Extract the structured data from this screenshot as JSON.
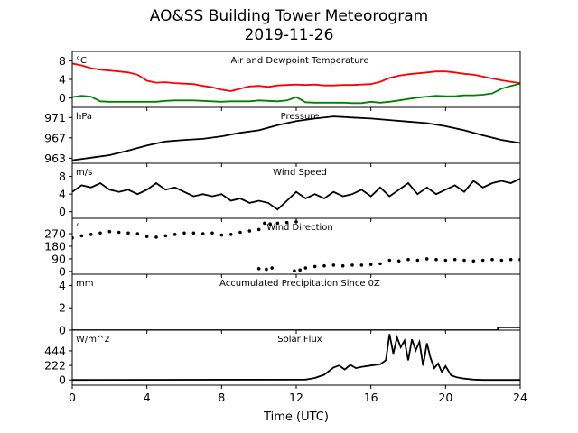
{
  "figure": {
    "title_line1": "AO&SS Building Tower Meteorogram",
    "title_line2": "2019-11-26",
    "xlabel": "Time (UTC)"
  },
  "chart_data": [
    {
      "type": "line",
      "panel": "temperature",
      "unit_label": "°C",
      "title": "Air and Dewpoint Temperature",
      "xlim": [
        0,
        24
      ],
      "ylim": [
        -2,
        10
      ],
      "yticks": [
        "0",
        "4",
        "8"
      ],
      "ytick_values": [
        0,
        4,
        8
      ],
      "series": [
        {
          "color": "#ff0000",
          "x": [
            0,
            0.5,
            1,
            1.5,
            2,
            2.5,
            3,
            3.5,
            4,
            4.5,
            5,
            5.5,
            6,
            6.5,
            7,
            7.5,
            8,
            8.5,
            9,
            9.5,
            10,
            10.5,
            11,
            11.5,
            12,
            12.5,
            13,
            13.5,
            14,
            14.5,
            15,
            15.5,
            16,
            16.5,
            17,
            17.5,
            18,
            18.5,
            19,
            19.5,
            20,
            20.5,
            21,
            21.5,
            22,
            22.5,
            23,
            23.5,
            24
          ],
          "values": [
            7.4,
            7.0,
            6.4,
            6.1,
            5.9,
            5.7,
            5.5,
            5.0,
            3.7,
            3.3,
            3.4,
            3.2,
            3.1,
            3.0,
            2.6,
            2.3,
            1.8,
            1.5,
            2.0,
            2.5,
            2.6,
            2.4,
            2.7,
            2.8,
            2.9,
            2.8,
            2.9,
            2.7,
            2.7,
            2.8,
            2.8,
            2.9,
            3.0,
            3.5,
            4.3,
            4.8,
            5.1,
            5.3,
            5.5,
            5.7,
            5.7,
            5.5,
            5.2,
            5.0,
            4.6,
            4.2,
            3.8,
            3.5,
            3.2
          ]
        },
        {
          "color": "#008000",
          "x": [
            0,
            0.5,
            1,
            1.5,
            2,
            2.5,
            3,
            3.5,
            4,
            4.5,
            5,
            5.5,
            6,
            6.5,
            7,
            7.5,
            8,
            8.5,
            9,
            9.5,
            10,
            10.5,
            11,
            11.5,
            12,
            12.5,
            13,
            13.5,
            14,
            14.5,
            15,
            15.5,
            16,
            16.5,
            17,
            17.5,
            18,
            18.5,
            19,
            19.5,
            20,
            20.5,
            21,
            21.5,
            22,
            22.5,
            23,
            23.5,
            24
          ],
          "values": [
            0.2,
            0.5,
            0.3,
            -0.7,
            -0.8,
            -0.8,
            -0.8,
            -0.8,
            -0.8,
            -0.8,
            -0.6,
            -0.5,
            -0.5,
            -0.5,
            -0.6,
            -0.7,
            -0.8,
            -0.7,
            -0.7,
            -0.7,
            -0.5,
            -0.6,
            -0.7,
            -0.5,
            0.2,
            -0.9,
            -1.0,
            -1.0,
            -1.0,
            -1.0,
            -1.1,
            -1.1,
            -0.8,
            -1.0,
            -0.8,
            -0.5,
            -0.2,
            0.1,
            0.3,
            0.5,
            0.4,
            0.4,
            0.6,
            0.6,
            0.7,
            1.0,
            2.0,
            2.6,
            3.1
          ]
        }
      ]
    },
    {
      "type": "line",
      "panel": "pressure",
      "unit_label": "hPa",
      "title": "Pressure",
      "xlim": [
        0,
        24
      ],
      "ylim": [
        962,
        973
      ],
      "yticks": [
        "963",
        "967",
        "971"
      ],
      "ytick_values": [
        963,
        967,
        971
      ],
      "series": [
        {
          "color": "#000000",
          "x": [
            0,
            1,
            2,
            3,
            4,
            5,
            6,
            7,
            8,
            9,
            10,
            11,
            12,
            13,
            14,
            15,
            16,
            17,
            18,
            19,
            20,
            21,
            22,
            23,
            24
          ],
          "values": [
            962.6,
            963.1,
            963.6,
            964.5,
            965.5,
            966.3,
            966.6,
            966.8,
            967.3,
            968.0,
            968.5,
            969.5,
            970.3,
            970.8,
            971.2,
            971.0,
            970.8,
            970.5,
            970.2,
            969.9,
            969.3,
            968.5,
            967.5,
            966.6,
            966.0
          ]
        }
      ]
    },
    {
      "type": "line",
      "panel": "wind_speed",
      "unit_label": "m/s",
      "title": "Wind Speed",
      "xlim": [
        0,
        24
      ],
      "ylim": [
        -1.5,
        11
      ],
      "yticks": [
        "0",
        "4",
        "8"
      ],
      "ytick_values": [
        0,
        4,
        8
      ],
      "series": [
        {
          "color": "#000000",
          "x": [
            0,
            0.5,
            1,
            1.5,
            2,
            2.5,
            3,
            3.5,
            4,
            4.5,
            5,
            5.5,
            6,
            6.5,
            7,
            7.5,
            8,
            8.5,
            9,
            9.5,
            10,
            10.5,
            11,
            11.5,
            12,
            12.5,
            13,
            13.5,
            14,
            14.5,
            15,
            15.5,
            16,
            16.5,
            17,
            17.5,
            18,
            18.5,
            19,
            19.5,
            20,
            20.5,
            21,
            21.5,
            22,
            22.5,
            23,
            23.5,
            24
          ],
          "values": [
            4.5,
            6.0,
            5.5,
            6.5,
            5.0,
            4.5,
            5.0,
            4.0,
            5.0,
            6.5,
            5.0,
            5.5,
            4.5,
            3.5,
            4.0,
            3.5,
            4.0,
            2.5,
            3.0,
            2.0,
            2.5,
            2.0,
            0.5,
            2.5,
            4.5,
            3.0,
            4.0,
            3.0,
            4.5,
            3.5,
            4.0,
            5.0,
            3.5,
            5.5,
            3.5,
            5.0,
            6.5,
            4.0,
            5.5,
            4.0,
            5.0,
            6.0,
            4.5,
            7.0,
            5.5,
            6.5,
            7.0,
            6.5,
            7.5
          ]
        }
      ]
    },
    {
      "type": "scatter",
      "panel": "wind_direction",
      "unit_label": "°",
      "title": "Wind Direction",
      "xlim": [
        0,
        24
      ],
      "ylim": [
        -20,
        380
      ],
      "yticks": [
        "0",
        "90",
        "180",
        "270"
      ],
      "ytick_values": [
        0,
        90,
        180,
        270
      ],
      "series": [
        {
          "color": "#000000",
          "x": [
            0,
            0.5,
            1,
            1.5,
            2,
            2.5,
            3,
            3.5,
            4,
            4.5,
            5,
            5.5,
            6,
            6.5,
            7,
            7.5,
            8,
            8.5,
            9,
            9.5,
            10,
            10.3,
            10.6,
            11,
            11.5,
            12,
            10,
            10.4,
            10.7,
            11.9,
            12.2,
            12.5,
            13,
            13.5,
            14,
            14.5,
            15,
            15.5,
            16,
            16.5,
            17,
            17.5,
            18,
            18.5,
            19,
            19.5,
            20,
            20.5,
            21,
            21.5,
            22,
            22.5,
            23,
            23.5,
            24
          ],
          "values": [
            240,
            255,
            265,
            275,
            285,
            280,
            275,
            270,
            250,
            245,
            255,
            265,
            275,
            275,
            270,
            275,
            260,
            265,
            280,
            290,
            300,
            345,
            340,
            345,
            350,
            355,
            20,
            15,
            25,
            5,
            10,
            25,
            35,
            40,
            45,
            40,
            45,
            45,
            50,
            55,
            80,
            75,
            85,
            80,
            90,
            85,
            80,
            85,
            80,
            75,
            80,
            85,
            80,
            85,
            85
          ]
        }
      ]
    },
    {
      "type": "line",
      "panel": "precipitation",
      "unit_label": "mm",
      "title": "Accumulated Precipitation Since 0Z",
      "xlim": [
        0,
        24
      ],
      "ylim": [
        0,
        5
      ],
      "yticks": [
        "0",
        "2",
        "4"
      ],
      "ytick_values": [
        0,
        2,
        4
      ],
      "series": [
        {
          "color": "#000000",
          "x": [
            0,
            22.8,
            22.8,
            24
          ],
          "values": [
            0,
            0,
            0.25,
            0.25
          ]
        }
      ]
    },
    {
      "type": "line",
      "panel": "solar_flux",
      "unit_label": "W/m^2",
      "title": "Solar Flux",
      "xlim": [
        0,
        24
      ],
      "ylim": [
        -80,
        760
      ],
      "yticks": [
        "0",
        "222",
        "444"
      ],
      "ytick_values": [
        0,
        222,
        444
      ],
      "series": [
        {
          "color": "#000000",
          "x": [
            0,
            12.5,
            13,
            13.5,
            14,
            14.3,
            14.6,
            14.9,
            15.2,
            15.5,
            16,
            16.5,
            16.8,
            17,
            17.2,
            17.4,
            17.6,
            17.8,
            18,
            18.2,
            18.4,
            18.6,
            18.8,
            19,
            19.2,
            19.4,
            19.6,
            19.8,
            20,
            20.3,
            20.6,
            21,
            21.5,
            22,
            24
          ],
          "values": [
            0,
            5,
            30,
            80,
            190,
            220,
            160,
            230,
            180,
            200,
            220,
            240,
            300,
            700,
            400,
            650,
            500,
            600,
            300,
            620,
            450,
            580,
            220,
            560,
            330,
            180,
            250,
            120,
            210,
            70,
            40,
            20,
            5,
            0,
            0
          ]
        }
      ]
    }
  ],
  "xaxis": {
    "xlim": [
      0,
      24
    ],
    "ticks": [
      "0",
      "4",
      "8",
      "12",
      "16",
      "20",
      "24"
    ],
    "tick_values": [
      0,
      4,
      8,
      12,
      16,
      20,
      24
    ]
  }
}
